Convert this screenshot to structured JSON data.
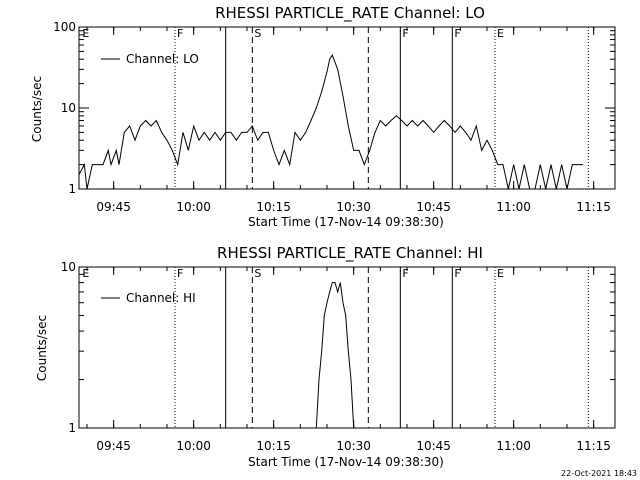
{
  "footer": {
    "timestamp": "22-Oct-2021 18:43"
  },
  "chart_data": [
    {
      "type": "line",
      "title": "RHESSI PARTICLE_RATE Channel: LO",
      "xlabel": "Start Time (17-Nov-14 09:38:30)",
      "ylabel": "Counts/sec",
      "yscale": "log",
      "xlim": [
        "09:38:30",
        "11:19:00"
      ],
      "ylim": [
        1,
        100
      ],
      "x_ticks": [
        "09:45",
        "10:00",
        "10:15",
        "10:30",
        "10:45",
        "11:00",
        "11:15"
      ],
      "y_ticks": [
        "1",
        "10",
        "100"
      ],
      "legend": {
        "label": "Channel: LO",
        "position": "top-left"
      },
      "flags": [
        {
          "time": "09:38:45",
          "label": "E",
          "style": "none"
        },
        {
          "time": "09:56:30",
          "label": "F",
          "style": "dotted"
        },
        {
          "time": "10:06:00",
          "label": "",
          "style": "solid"
        },
        {
          "time": "10:11:00",
          "label": "S",
          "style": "dashed"
        },
        {
          "time": "10:32:45",
          "label": "",
          "style": "dashed"
        },
        {
          "time": "10:38:45",
          "label": "F",
          "style": "solid"
        },
        {
          "time": "10:48:30",
          "label": "F",
          "style": "solid"
        },
        {
          "time": "10:56:30",
          "label": "E",
          "style": "dotted"
        },
        {
          "time": "11:14:00",
          "label": "",
          "style": "dotted"
        }
      ],
      "series": [
        {
          "name": "Channel: LO",
          "x": [
            "09:38:30",
            "09:39:30",
            "09:40:00",
            "09:41:00",
            "09:42:00",
            "09:43:00",
            "09:44:00",
            "09:44:30",
            "09:45:30",
            "09:46:00",
            "09:47:00",
            "09:48:00",
            "09:49:00",
            "09:50:00",
            "09:51:00",
            "09:52:00",
            "09:53:00",
            "09:54:00",
            "09:55:00",
            "09:56:00",
            "09:57:00",
            "09:58:00",
            "09:59:00",
            "10:00:00",
            "10:01:00",
            "10:02:00",
            "10:03:00",
            "10:04:00",
            "10:05:00",
            "10:06:00",
            "10:07:00",
            "10:08:00",
            "10:09:00",
            "10:10:00",
            "10:11:00",
            "10:12:00",
            "10:13:00",
            "10:14:00",
            "10:15:00",
            "10:16:00",
            "10:17:00",
            "10:18:00",
            "10:19:00",
            "10:20:00",
            "10:21:00",
            "10:22:00",
            "10:23:00",
            "10:24:00",
            "10:25:00",
            "10:25:30",
            "10:26:00",
            "10:27:00",
            "10:28:00",
            "10:29:00",
            "10:30:00",
            "10:31:00",
            "10:32:00",
            "10:33:00",
            "10:34:00",
            "10:35:00",
            "10:36:00",
            "10:37:00",
            "10:38:00",
            "10:39:00",
            "10:40:00",
            "10:41:00",
            "10:42:00",
            "10:43:00",
            "10:44:00",
            "10:45:00",
            "10:46:00",
            "10:47:00",
            "10:48:00",
            "10:49:00",
            "10:50:00",
            "10:51:00",
            "10:52:00",
            "10:53:00",
            "10:54:00",
            "10:55:00",
            "10:56:00",
            "10:57:00",
            "10:58:00",
            "10:59:00",
            "11:00:00",
            "11:01:00",
            "11:02:00",
            "11:03:00",
            "11:04:00",
            "11:05:00",
            "11:06:00",
            "11:07:00",
            "11:08:00",
            "11:09:00",
            "11:10:00",
            "11:11:00",
            "11:12:00",
            "11:13:00"
          ],
          "y": [
            1.5,
            2,
            1,
            2,
            2,
            2,
            3,
            2,
            3,
            2,
            5,
            6,
            4,
            6,
            7,
            6,
            7,
            5,
            4,
            3,
            2,
            5,
            3,
            6,
            4,
            5,
            4,
            5,
            4,
            5,
            5,
            4,
            5,
            5,
            6,
            4,
            5,
            5,
            3,
            2,
            3,
            2,
            5,
            4,
            5,
            7,
            10,
            16,
            28,
            40,
            45,
            30,
            14,
            6,
            3,
            3,
            2,
            3,
            5,
            7,
            6,
            7,
            8,
            7,
            6,
            7,
            6,
            7,
            6,
            5,
            6,
            7,
            6,
            5,
            6,
            5,
            4,
            6,
            3,
            4,
            3,
            2,
            2,
            1,
            2,
            1,
            2,
            1,
            1,
            2,
            1,
            2,
            1,
            2,
            1,
            2,
            2,
            2
          ]
        }
      ]
    },
    {
      "type": "line",
      "title": "RHESSI PARTICLE_RATE Channel: HI",
      "xlabel": "Start Time (17-Nov-14 09:38:30)",
      "ylabel": "Counts/sec",
      "yscale": "log",
      "xlim": [
        "09:38:30",
        "11:19:00"
      ],
      "ylim": [
        1,
        10
      ],
      "x_ticks": [
        "09:45",
        "10:00",
        "10:15",
        "10:30",
        "10:45",
        "11:00",
        "11:15"
      ],
      "y_ticks": [
        "1",
        "10"
      ],
      "legend": {
        "label": "Channel: HI",
        "position": "top-left"
      },
      "flags": [
        {
          "time": "09:38:45",
          "label": "E",
          "style": "none"
        },
        {
          "time": "09:56:30",
          "label": "F",
          "style": "dotted"
        },
        {
          "time": "10:06:00",
          "label": "",
          "style": "solid"
        },
        {
          "time": "10:11:00",
          "label": "S",
          "style": "dashed"
        },
        {
          "time": "10:32:45",
          "label": "",
          "style": "dashed"
        },
        {
          "time": "10:38:45",
          "label": "F",
          "style": "solid"
        },
        {
          "time": "10:48:30",
          "label": "F",
          "style": "solid"
        },
        {
          "time": "10:56:30",
          "label": "E",
          "style": "dotted"
        },
        {
          "time": "11:14:00",
          "label": "",
          "style": "dotted"
        }
      ],
      "series": [
        {
          "name": "Channel: HI",
          "x": [
            "10:23:00",
            "10:23:30",
            "10:24:00",
            "10:24:30",
            "10:25:00",
            "10:25:30",
            "10:26:00",
            "10:26:30",
            "10:27:00",
            "10:27:30",
            "10:28:00",
            "10:28:30",
            "10:29:00",
            "10:29:30",
            "10:30:00"
          ],
          "y": [
            1,
            2,
            3,
            5,
            6,
            7,
            8,
            8,
            7,
            8,
            6,
            5,
            3,
            2,
            1
          ]
        }
      ]
    }
  ]
}
